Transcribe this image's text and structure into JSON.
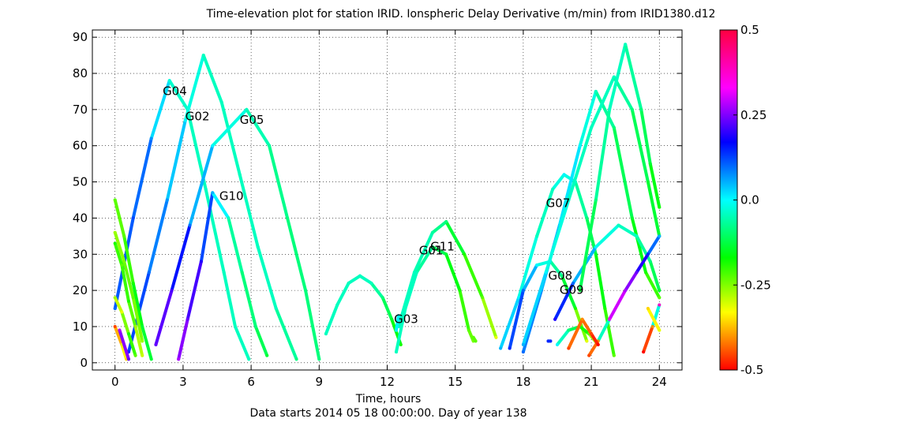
{
  "chart_data": {
    "type": "scatter",
    "title": "Time-elevation plot for station IRID.   Ionspheric Delay Derivative (m/min) from IRID1380.d12",
    "xlabel": "Time, hours",
    "subtitle": "Data starts 2014 05 18 00:00:00.  Day of year 138",
    "ylabel": "",
    "xlim": [
      -1,
      25
    ],
    "ylim": [
      -2,
      92
    ],
    "x_ticks": [
      0,
      3,
      6,
      9,
      12,
      15,
      18,
      21,
      24
    ],
    "y_ticks": [
      0,
      10,
      20,
      30,
      40,
      50,
      60,
      70,
      80,
      90
    ],
    "grid": true,
    "colorbar": {
      "min": -0.5,
      "max": 0.5,
      "ticks": [
        0.5,
        0.25,
        0.0,
        -0.25,
        -0.5
      ],
      "tick_labels": [
        "0.5",
        "0.25",
        "0.0",
        "-0.25",
        "-0.5"
      ]
    },
    "satellite_labels": [
      {
        "name": "G04",
        "x": 2.1,
        "y": 74
      },
      {
        "name": "G02",
        "x": 3.1,
        "y": 67
      },
      {
        "name": "G05",
        "x": 5.5,
        "y": 66
      },
      {
        "name": "G10",
        "x": 4.6,
        "y": 45
      },
      {
        "name": "G07",
        "x": 19.0,
        "y": 43
      },
      {
        "name": "G11",
        "x": 13.9,
        "y": 31
      },
      {
        "name": "G01",
        "x": 13.4,
        "y": 30
      },
      {
        "name": "G03",
        "x": 12.3,
        "y": 11
      },
      {
        "name": "G08",
        "x": 19.1,
        "y": 23
      },
      {
        "name": "G09",
        "x": 19.6,
        "y": 19
      }
    ],
    "series": [
      {
        "points": [
          [
            0.0,
            15,
            0.15
          ],
          [
            0.8,
            40,
            0.18
          ],
          [
            1.6,
            62,
            0.12
          ],
          [
            2.4,
            78,
            0.02
          ],
          [
            3.2,
            70,
            0.0
          ],
          [
            4.0,
            48,
            0.0
          ],
          [
            4.8,
            25,
            0.0
          ],
          [
            5.3,
            10,
            0.0
          ],
          [
            5.9,
            1,
            0.0
          ]
        ]
      },
      {
        "points": [
          [
            0.6,
            3,
            0.2
          ],
          [
            1.5,
            25,
            0.15
          ],
          [
            2.3,
            45,
            0.12
          ],
          [
            3.1,
            67,
            0.05
          ],
          [
            3.9,
            85,
            0.0
          ],
          [
            4.7,
            72,
            0.0
          ],
          [
            5.5,
            52,
            0.0
          ],
          [
            6.3,
            32,
            0.0
          ],
          [
            7.1,
            15,
            0.0
          ],
          [
            8.0,
            1,
            -0.05
          ]
        ]
      },
      {
        "points": [
          [
            1.8,
            5,
            0.3
          ],
          [
            2.5,
            20,
            0.28
          ],
          [
            3.3,
            38,
            0.15
          ],
          [
            4.3,
            60,
            0.05
          ],
          [
            5.8,
            70,
            0.0
          ],
          [
            6.8,
            60,
            -0.02
          ],
          [
            7.6,
            40,
            -0.05
          ],
          [
            8.4,
            20,
            -0.05
          ],
          [
            9.0,
            1,
            -0.05
          ]
        ]
      },
      {
        "points": [
          [
            2.8,
            1,
            0.35
          ],
          [
            3.2,
            12,
            0.3
          ],
          [
            3.8,
            28,
            0.25
          ],
          [
            4.3,
            47,
            0.1
          ],
          [
            5.0,
            40,
            0.0
          ],
          [
            5.6,
            25,
            -0.05
          ],
          [
            6.2,
            10,
            -0.05
          ],
          [
            6.7,
            2,
            -0.1
          ]
        ]
      },
      {
        "points": [
          [
            0.0,
            45,
            -0.2
          ],
          [
            0.4,
            35,
            -0.2
          ],
          [
            0.8,
            22,
            -0.15
          ],
          [
            1.2,
            10,
            -0.1
          ],
          [
            1.6,
            1,
            -0.1
          ]
        ]
      },
      {
        "points": [
          [
            0.0,
            36,
            -0.25
          ],
          [
            0.4,
            28,
            -0.22
          ],
          [
            0.8,
            18,
            -0.2
          ],
          [
            1.2,
            6,
            -0.25
          ]
        ]
      },
      {
        "points": [
          [
            0.0,
            33,
            -0.15
          ],
          [
            0.3,
            27,
            -0.2
          ],
          [
            0.6,
            17,
            -0.15
          ],
          [
            0.9,
            10,
            -0.25
          ],
          [
            1.2,
            2,
            -0.28
          ]
        ]
      },
      {
        "points": [
          [
            0.0,
            10,
            -0.45
          ],
          [
            0.3,
            5,
            -0.3
          ],
          [
            0.5,
            1,
            -0.35
          ]
        ]
      },
      {
        "points": [
          [
            0.0,
            18,
            -0.25
          ],
          [
            0.3,
            14,
            -0.3
          ],
          [
            0.6,
            8,
            -0.15
          ],
          [
            0.9,
            2,
            -0.2
          ]
        ]
      },
      {
        "points": [
          [
            0.2,
            9,
            0.35
          ],
          [
            0.6,
            1,
            0.3
          ]
        ]
      },
      {
        "points": [
          [
            9.3,
            8,
            0.0
          ],
          [
            9.8,
            16,
            0.0
          ],
          [
            10.3,
            22,
            0.0
          ],
          [
            10.8,
            24,
            0.0
          ],
          [
            11.3,
            22,
            0.0
          ],
          [
            11.8,
            18,
            -0.05
          ],
          [
            12.2,
            12,
            -0.1
          ],
          [
            12.6,
            5,
            -0.15
          ]
        ]
      },
      {
        "points": [
          [
            12.4,
            3,
            0.0
          ],
          [
            12.8,
            15,
            0.0
          ],
          [
            13.3,
            25,
            0.0
          ],
          [
            14.0,
            32,
            -0.05
          ],
          [
            14.6,
            30,
            -0.1
          ],
          [
            15.2,
            20,
            -0.15
          ],
          [
            15.6,
            9,
            -0.2
          ],
          [
            15.8,
            6,
            -0.22
          ]
        ]
      },
      {
        "points": [
          [
            12.5,
            10,
            0.0
          ],
          [
            13.2,
            25,
            0.0
          ],
          [
            14.0,
            36,
            -0.02
          ],
          [
            14.6,
            39,
            -0.05
          ],
          [
            15.4,
            30,
            -0.15
          ],
          [
            16.2,
            18,
            -0.2
          ],
          [
            16.8,
            7,
            -0.3
          ]
        ]
      },
      {
        "points": [
          [
            17.0,
            4,
            0.1
          ],
          [
            17.8,
            18,
            0.05
          ],
          [
            18.6,
            35,
            0.0
          ],
          [
            19.3,
            48,
            0.0
          ],
          [
            19.8,
            52,
            0.05
          ],
          [
            20.3,
            50,
            0.0
          ],
          [
            20.8,
            40,
            -0.05
          ],
          [
            21.2,
            30,
            -0.1
          ],
          [
            21.6,
            15,
            -0.15
          ],
          [
            22.0,
            2,
            -0.2
          ]
        ]
      },
      {
        "points": [
          [
            17.4,
            4,
            0.2
          ],
          [
            18.0,
            20,
            0.15
          ],
          [
            18.6,
            27,
            0.05
          ],
          [
            19.2,
            28,
            0.0
          ],
          [
            19.7,
            24,
            -0.05
          ],
          [
            20.3,
            15,
            -0.15
          ],
          [
            20.8,
            6,
            -0.3
          ]
        ]
      },
      {
        "points": [
          [
            18.0,
            3,
            0.15
          ],
          [
            18.8,
            20,
            0.12
          ],
          [
            19.6,
            38,
            0.08
          ],
          [
            20.5,
            60,
            0.05
          ],
          [
            21.2,
            75,
            0.0
          ],
          [
            22.0,
            65,
            -0.05
          ],
          [
            22.8,
            40,
            -0.1
          ],
          [
            23.4,
            25,
            -0.15
          ],
          [
            24.0,
            18,
            -0.2
          ]
        ]
      },
      {
        "points": [
          [
            18.0,
            5,
            0.1
          ],
          [
            19.0,
            25,
            0.05
          ],
          [
            20.0,
            45,
            0.0
          ],
          [
            21.0,
            65,
            0.0
          ],
          [
            22.0,
            79,
            0.0
          ],
          [
            22.8,
            70,
            -0.05
          ],
          [
            23.5,
            50,
            -0.1
          ],
          [
            24.0,
            35,
            -0.1
          ]
        ]
      },
      {
        "points": [
          [
            19.4,
            12,
            0.25
          ],
          [
            20.2,
            22,
            0.15
          ],
          [
            21.2,
            32,
            0.05
          ],
          [
            22.2,
            38,
            0.0
          ],
          [
            23.0,
            35,
            0.0
          ],
          [
            23.6,
            28,
            -0.05
          ],
          [
            24.0,
            20,
            -0.1
          ]
        ]
      },
      {
        "points": [
          [
            20.5,
            20,
            -0.1
          ],
          [
            21.2,
            45,
            -0.05
          ],
          [
            21.8,
            70,
            0.0
          ],
          [
            22.5,
            88,
            0.0
          ],
          [
            23.2,
            70,
            -0.05
          ],
          [
            23.6,
            55,
            -0.1
          ],
          [
            24.0,
            43,
            -0.15
          ]
        ]
      },
      {
        "points": [
          [
            19.5,
            5,
            0.05
          ],
          [
            20.0,
            9,
            -0.05
          ],
          [
            20.5,
            10,
            -0.1
          ],
          [
            20.9,
            8,
            -0.2
          ],
          [
            21.3,
            5,
            -0.3
          ]
        ]
      },
      {
        "points": [
          [
            20.9,
            2,
            -0.45
          ],
          [
            21.3,
            6,
            -0.4
          ],
          [
            21.8,
            12,
            0.4
          ],
          [
            22.5,
            20,
            0.35
          ],
          [
            23.0,
            25,
            0.3
          ],
          [
            23.5,
            30,
            0.2
          ],
          [
            24.0,
            35,
            0.1
          ]
        ]
      },
      {
        "points": [
          [
            20.0,
            4,
            -0.45
          ],
          [
            20.6,
            12,
            -0.4
          ],
          [
            21.0,
            8,
            -0.45
          ],
          [
            21.3,
            5,
            -0.5
          ]
        ]
      },
      {
        "points": [
          [
            23.3,
            3,
            -0.5
          ],
          [
            23.7,
            10,
            -0.4
          ],
          [
            24.0,
            16,
            0.45
          ]
        ]
      },
      {
        "points": [
          [
            23.5,
            15,
            -0.35
          ],
          [
            24.0,
            9,
            -0.3
          ]
        ]
      },
      {
        "points": [
          [
            19.1,
            6,
            0.2
          ],
          [
            19.2,
            6,
            0.2
          ]
        ]
      },
      {
        "points": [
          [
            12.4,
            9,
            0.05
          ],
          [
            12.5,
            13,
            0.05
          ]
        ]
      },
      {
        "points": [
          [
            15.8,
            7,
            -0.2
          ],
          [
            15.9,
            6,
            -0.2
          ]
        ]
      }
    ]
  }
}
